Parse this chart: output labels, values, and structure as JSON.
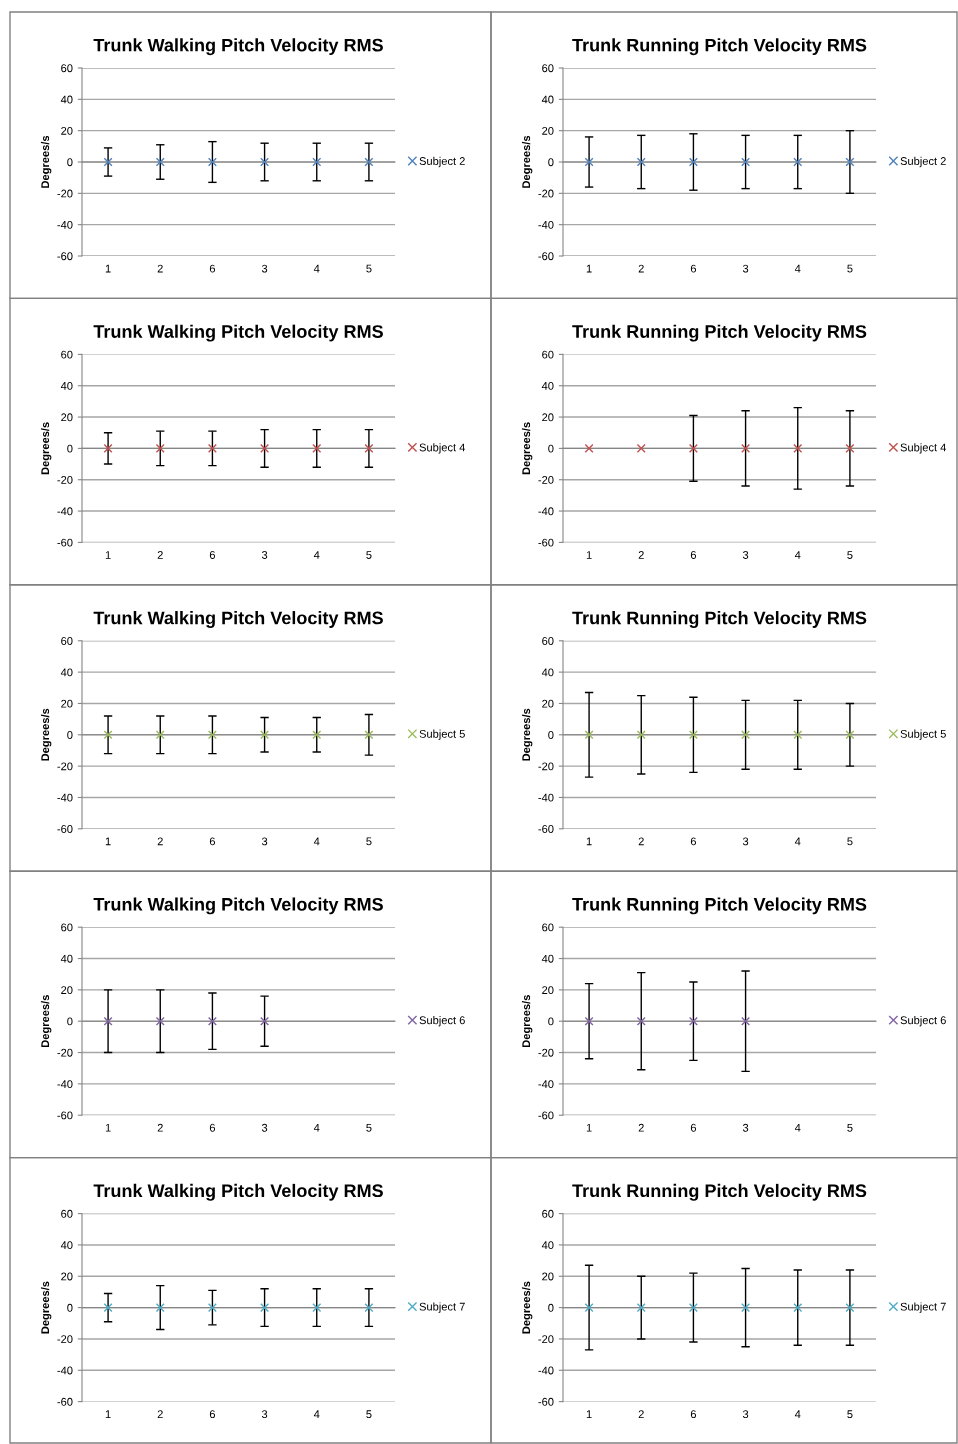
{
  "chart_data": [
    {
      "type": "scatter",
      "title": "Trunk Walking Pitch Velocity RMS",
      "ylabel": "Degrees/s",
      "categories": [
        "1",
        "2",
        "6",
        "3",
        "4",
        "5"
      ],
      "ylim": [
        -60,
        60
      ],
      "yticks": [
        -60,
        -40,
        -20,
        0,
        20,
        40,
        60
      ],
      "grid": "y",
      "legend": "right",
      "marker": "cross",
      "series": [
        {
          "name": "Subject 2",
          "color": "#4f81bd",
          "values": [
            0,
            0,
            0,
            0,
            0,
            0
          ],
          "errors": [
            9,
            11,
            13,
            12,
            12,
            12
          ]
        }
      ]
    },
    {
      "type": "scatter",
      "title": "Trunk Running Pitch Velocity RMS",
      "ylabel": "Degrees/s",
      "categories": [
        "1",
        "2",
        "6",
        "3",
        "4",
        "5"
      ],
      "ylim": [
        -60,
        60
      ],
      "yticks": [
        -60,
        -40,
        -20,
        0,
        20,
        40,
        60
      ],
      "grid": "y",
      "legend": "right",
      "marker": "cross",
      "series": [
        {
          "name": "Subject 2",
          "color": "#4f81bd",
          "values": [
            0,
            0,
            0,
            0,
            0,
            0
          ],
          "errors": [
            16,
            17,
            18,
            17,
            17,
            20
          ]
        }
      ]
    },
    {
      "type": "scatter",
      "title": "Trunk Walking Pitch Velocity RMS",
      "ylabel": "Degrees/s",
      "categories": [
        "1",
        "2",
        "6",
        "3",
        "4",
        "5"
      ],
      "ylim": [
        -60,
        60
      ],
      "yticks": [
        -60,
        -40,
        -20,
        0,
        20,
        40,
        60
      ],
      "grid": "y",
      "legend": "right",
      "marker": "cross",
      "series": [
        {
          "name": "Subject 4",
          "color": "#c0504d",
          "values": [
            0,
            0,
            0,
            0,
            0,
            0
          ],
          "errors": [
            10,
            11,
            11,
            12,
            12,
            12
          ]
        }
      ]
    },
    {
      "type": "scatter",
      "title": "Trunk Running Pitch Velocity RMS",
      "ylabel": "Degrees/s",
      "categories": [
        "1",
        "2",
        "6",
        "3",
        "4",
        "5"
      ],
      "ylim": [
        -60,
        60
      ],
      "yticks": [
        -60,
        -40,
        -20,
        0,
        20,
        40,
        60
      ],
      "grid": "y",
      "legend": "right",
      "marker": "cross",
      "series": [
        {
          "name": "Subject 4",
          "color": "#c0504d",
          "values": [
            0,
            0,
            0,
            0,
            0,
            0
          ],
          "errors": [
            null,
            null,
            21,
            24,
            26,
            24
          ]
        }
      ]
    },
    {
      "type": "scatter",
      "title": "Trunk Walking Pitch Velocity RMS",
      "ylabel": "Degrees/s",
      "categories": [
        "1",
        "2",
        "6",
        "3",
        "4",
        "5"
      ],
      "ylim": [
        -60,
        60
      ],
      "yticks": [
        -60,
        -40,
        -20,
        0,
        20,
        40,
        60
      ],
      "grid": "y",
      "legend": "right",
      "marker": "cross",
      "series": [
        {
          "name": "Subject 5",
          "color": "#9bbb59",
          "values": [
            0,
            0,
            0,
            0,
            0,
            0
          ],
          "errors": [
            12,
            12,
            12,
            11,
            11,
            13
          ]
        }
      ]
    },
    {
      "type": "scatter",
      "title": "Trunk Running Pitch Velocity RMS",
      "ylabel": "Degrees/s",
      "categories": [
        "1",
        "2",
        "6",
        "3",
        "4",
        "5"
      ],
      "ylim": [
        -60,
        60
      ],
      "yticks": [
        -60,
        -40,
        -20,
        0,
        20,
        40,
        60
      ],
      "grid": "y",
      "legend": "right",
      "marker": "cross",
      "series": [
        {
          "name": "Subject 5",
          "color": "#9bbb59",
          "values": [
            0,
            0,
            0,
            0,
            0,
            0
          ],
          "errors": [
            27,
            25,
            24,
            22,
            22,
            20
          ]
        }
      ]
    },
    {
      "type": "scatter",
      "title": "Trunk Walking Pitch Velocity RMS",
      "ylabel": "Degrees/s",
      "categories": [
        "1",
        "2",
        "6",
        "3",
        "4",
        "5"
      ],
      "ylim": [
        -60,
        60
      ],
      "yticks": [
        -60,
        -40,
        -20,
        0,
        20,
        40,
        60
      ],
      "grid": "y",
      "legend": "right",
      "marker": "cross",
      "series": [
        {
          "name": "Subject 6",
          "color": "#8064a2",
          "values": [
            0,
            0,
            0,
            0,
            null,
            null
          ],
          "errors": [
            20,
            20,
            18,
            16,
            null,
            null
          ]
        }
      ]
    },
    {
      "type": "scatter",
      "title": "Trunk Running Pitch Velocity RMS",
      "ylabel": "Degrees/s",
      "categories": [
        "1",
        "2",
        "6",
        "3",
        "4",
        "5"
      ],
      "ylim": [
        -60,
        60
      ],
      "yticks": [
        -60,
        -40,
        -20,
        0,
        20,
        40,
        60
      ],
      "grid": "y",
      "legend": "right",
      "marker": "cross",
      "series": [
        {
          "name": "Subject 6",
          "color": "#8064a2",
          "values": [
            0,
            0,
            0,
            0,
            null,
            null
          ],
          "errors": [
            24,
            31,
            25,
            32,
            null,
            null
          ]
        }
      ]
    },
    {
      "type": "scatter",
      "title": "Trunk Walking Pitch Velocity RMS",
      "ylabel": "Degrees/s",
      "categories": [
        "1",
        "2",
        "6",
        "3",
        "4",
        "5"
      ],
      "ylim": [
        -60,
        60
      ],
      "yticks": [
        -60,
        -40,
        -20,
        0,
        20,
        40,
        60
      ],
      "grid": "y",
      "legend": "right",
      "marker": "cross",
      "series": [
        {
          "name": "Subject 7",
          "color": "#4bacc6",
          "values": [
            0,
            0,
            0,
            0,
            0,
            0
          ],
          "errors": [
            9,
            14,
            11,
            12,
            12,
            12
          ]
        }
      ]
    },
    {
      "type": "scatter",
      "title": "Trunk Running Pitch Velocity RMS",
      "ylabel": "Degrees/s",
      "categories": [
        "1",
        "2",
        "6",
        "3",
        "4",
        "5"
      ],
      "ylim": [
        -60,
        60
      ],
      "yticks": [
        -60,
        -40,
        -20,
        0,
        20,
        40,
        60
      ],
      "grid": "y",
      "legend": "right",
      "marker": "cross",
      "series": [
        {
          "name": "Subject 7",
          "color": "#4bacc6",
          "values": [
            0,
            0,
            0,
            0,
            0,
            0
          ],
          "errors": [
            27,
            20,
            22,
            25,
            24,
            24
          ]
        }
      ]
    }
  ]
}
